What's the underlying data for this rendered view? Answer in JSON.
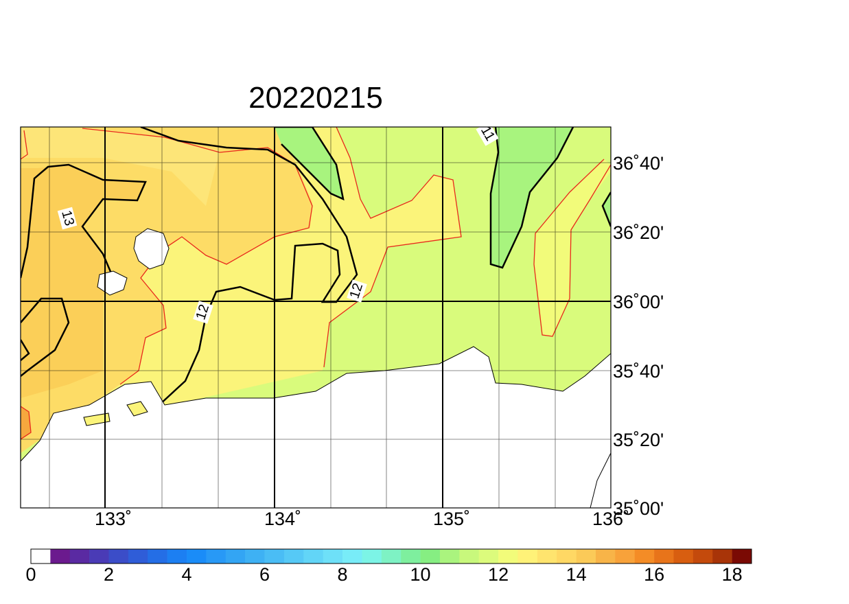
{
  "title": "20220215",
  "longitude_labels": [
    "133˚",
    "134˚",
    "135˚",
    "136˚"
  ],
  "latitude_labels": [
    "36˚40'",
    "36˚20'",
    "36˚00'",
    "35˚40'",
    "35˚20'",
    "35˚00'"
  ],
  "contour_labels": [
    "13",
    "12",
    "12",
    "11"
  ],
  "colorbar": {
    "range": [
      0,
      18.5
    ],
    "ticks": [
      0,
      2,
      4,
      6,
      8,
      10,
      12,
      14,
      16,
      18
    ],
    "colors": [
      "#ffffff",
      "#6b1a8e",
      "#5a2aa2",
      "#4a3bb6",
      "#3b4dc8",
      "#2f5dd8",
      "#246ee6",
      "#1c7ff2",
      "#1a8cf8",
      "#2899f6",
      "#33a5f4",
      "#3eb1f4",
      "#4abdf5",
      "#56c9f6",
      "#62d5f7",
      "#6ee0f8",
      "#78ecf8",
      "#7cf4e6",
      "#7ef2c4",
      "#7eef9e",
      "#86ee82",
      "#aaf47e",
      "#c8f87c",
      "#dcfb7c",
      "#f2fc7a",
      "#fff278",
      "#ffe46e",
      "#ffd864",
      "#fbca58",
      "#f8b448",
      "#f8a23a",
      "#f48c26",
      "#e8741a",
      "#d85e10",
      "#c44a0c",
      "#a83408",
      "#7a0a04"
    ]
  }
}
